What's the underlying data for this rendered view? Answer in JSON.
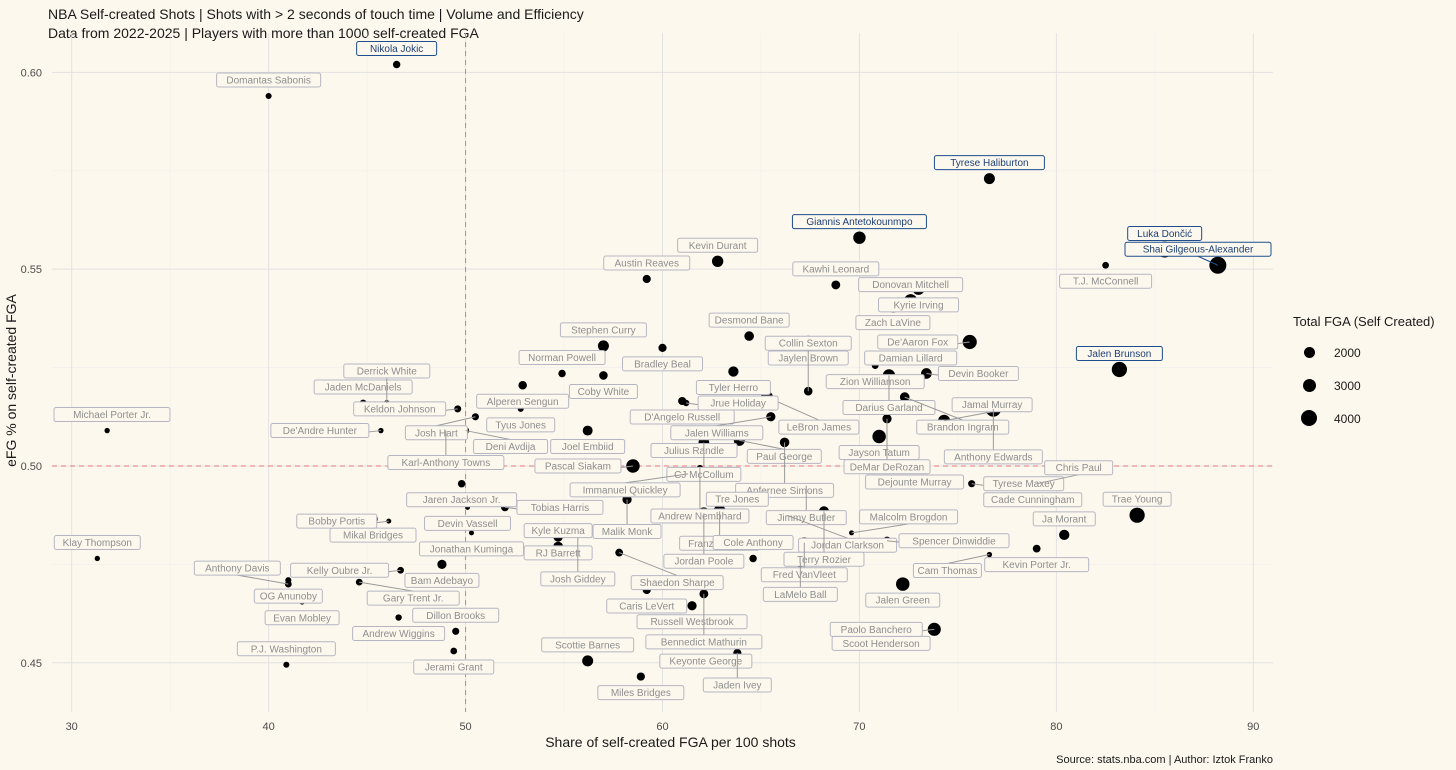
{
  "title": {
    "line1": "NBA Self-created Shots | Shots with > 2 seconds of touch time | Volume and Efficiency",
    "line2": "Data from 2022-2025 | Players with more than 1000 self-created FGA"
  },
  "source": "Source: stats.nba.com | Author: Iztok Franko",
  "legend": {
    "title": "Total FGA (Self Created)",
    "items": [
      {
        "label": "2000",
        "value": 2000
      },
      {
        "label": "3000",
        "value": 3000
      },
      {
        "label": "4000",
        "value": 4000
      }
    ]
  },
  "colors": {
    "background": "#fdf8ee",
    "grid": "#e2e2e2",
    "refline": "#e07a7a",
    "point": "#000000",
    "highlight": "#1f4e8c",
    "muted_label": "#8e8e8e"
  },
  "chart_data": {
    "type": "scatter",
    "xlabel": "Share of self-created FGA per 100 shots",
    "ylabel": "eFG % on self-created FGA",
    "xlim": [
      29,
      91
    ],
    "ylim": [
      0.4375,
      0.61
    ],
    "xticks": [
      30,
      40,
      50,
      60,
      70,
      80,
      90
    ],
    "yticks": [
      0.45,
      0.5,
      0.55,
      0.6
    ],
    "ytick_labels": [
      "0.45",
      "0.50",
      "0.55",
      "0.60"
    ],
    "reference_lines": {
      "x": 50,
      "y": 0.5
    },
    "grid": true,
    "legend_position": "right",
    "points": [
      {
        "name": "Nikola Jokic",
        "x": 46.5,
        "y": 0.602,
        "fga": 1700,
        "hl": true
      },
      {
        "name": "Domantas Sabonis",
        "x": 40.0,
        "y": 0.594,
        "fga": 1300,
        "hl": false
      },
      {
        "name": "Tyrese Haliburton",
        "x": 76.6,
        "y": 0.573,
        "fga": 2700,
        "hl": true
      },
      {
        "name": "Giannis Antetokounmpo",
        "x": 70.0,
        "y": 0.558,
        "fga": 3100,
        "hl": true
      },
      {
        "name": "Luka Dončić",
        "x": 85.5,
        "y": 0.555,
        "fga": 4100,
        "hl": true
      },
      {
        "name": "Shai Gilgeous-Alexander",
        "x": 88.2,
        "y": 0.551,
        "fga": 4400,
        "hl": true
      },
      {
        "name": "T.J. McConnell",
        "x": 82.5,
        "y": 0.551,
        "fga": 1500,
        "hl": false
      },
      {
        "name": "Kevin Durant",
        "x": 62.8,
        "y": 0.552,
        "fga": 2800,
        "hl": false
      },
      {
        "name": "Austin Reaves",
        "x": 59.2,
        "y": 0.5475,
        "fga": 1900,
        "hl": false
      },
      {
        "name": "Kawhi Leonard",
        "x": 68.8,
        "y": 0.546,
        "fga": 2100,
        "hl": false
      },
      {
        "name": "Kyrie Irving",
        "x": 73.0,
        "y": 0.545,
        "fga": 3000,
        "hl": false
      },
      {
        "name": "Donovan Mitchell",
        "x": 72.6,
        "y": 0.542,
        "fga": 3300,
        "hl": false
      },
      {
        "name": "Zach LaVine",
        "x": 71.7,
        "y": 0.5405,
        "fga": 3000,
        "hl": false
      },
      {
        "name": "Desmond Bane",
        "x": 64.4,
        "y": 0.533,
        "fga": 2300,
        "hl": false
      },
      {
        "name": "Damian Lillard",
        "x": 72.6,
        "y": 0.5315,
        "fga": 3000,
        "hl": false
      },
      {
        "name": "De'Aaron Fox",
        "x": 75.6,
        "y": 0.5315,
        "fga": 3600,
        "hl": false
      },
      {
        "name": "Jaylen Brown",
        "x": 67.4,
        "y": 0.5315,
        "fga": 3100,
        "hl": false
      },
      {
        "name": "Stephen Curry",
        "x": 57.0,
        "y": 0.5305,
        "fga": 2700,
        "hl": false
      },
      {
        "name": "Bradley Beal",
        "x": 60.0,
        "y": 0.53,
        "fga": 1900,
        "hl": false
      },
      {
        "name": "Norman Powell",
        "x": 54.9,
        "y": 0.5235,
        "fga": 1700,
        "hl": false
      },
      {
        "name": "Coby White",
        "x": 57.0,
        "y": 0.523,
        "fga": 2000,
        "hl": false
      },
      {
        "name": "Tyler Herro",
        "x": 63.6,
        "y": 0.524,
        "fga": 2500,
        "hl": false
      },
      {
        "name": "Zion Williamson",
        "x": 70.8,
        "y": 0.5255,
        "fga": 1500,
        "hl": false
      },
      {
        "name": "Darius Garland",
        "x": 71.5,
        "y": 0.523,
        "fga": 3100,
        "hl": false
      },
      {
        "name": "Devin Booker",
        "x": 73.4,
        "y": 0.5235,
        "fga": 2600,
        "hl": false
      },
      {
        "name": "Jalen Brunson",
        "x": 83.2,
        "y": 0.5245,
        "fga": 3900,
        "hl": true
      },
      {
        "name": "Alperen Sengun",
        "x": 52.9,
        "y": 0.5205,
        "fga": 2000,
        "hl": false
      },
      {
        "name": "D'Angelo Russell",
        "x": 61.0,
        "y": 0.5165,
        "fga": 1900,
        "hl": false
      },
      {
        "name": "LeBron James",
        "x": 65.3,
        "y": 0.5175,
        "fga": 3000,
        "hl": false
      },
      {
        "name": "Collin Sexton",
        "x": 67.4,
        "y": 0.519,
        "fga": 2000,
        "hl": false
      },
      {
        "name": "Tyus Jones",
        "x": 52.8,
        "y": 0.5145,
        "fga": 1300,
        "hl": false
      },
      {
        "name": "Jrue Holiday",
        "x": 61.2,
        "y": 0.516,
        "fga": 1400,
        "hl": false
      },
      {
        "name": "Jalen Williams",
        "x": 65.5,
        "y": 0.5125,
        "fga": 2200,
        "hl": false
      },
      {
        "name": "Brandon Ingram",
        "x": 72.3,
        "y": 0.5175,
        "fga": 2300,
        "hl": false
      },
      {
        "name": "Jamal Murray",
        "x": 74.3,
        "y": 0.5115,
        "fga": 3000,
        "hl": false
      },
      {
        "name": "Anthony Edwards",
        "x": 76.8,
        "y": 0.5145,
        "fga": 4000,
        "hl": false
      },
      {
        "name": "Jayson Tatum",
        "x": 71.0,
        "y": 0.5075,
        "fga": 3400,
        "hl": false
      },
      {
        "name": "DeMar DeRozan",
        "x": 71.4,
        "y": 0.512,
        "fga": 2200,
        "hl": false
      },
      {
        "name": "Jaden McDaniels",
        "x": 44.8,
        "y": 0.516,
        "fga": 1500,
        "hl": false
      },
      {
        "name": "Keldon Johnson",
        "x": 49.6,
        "y": 0.5145,
        "fga": 1600,
        "hl": false
      },
      {
        "name": "Derrick White",
        "x": 46.0,
        "y": 0.516,
        "fga": 1200,
        "hl": false
      },
      {
        "name": "Josh Hart",
        "x": 50.5,
        "y": 0.5125,
        "fga": 1600,
        "hl": false
      },
      {
        "name": "Deni Avdija",
        "x": 50.0,
        "y": 0.509,
        "fga": 1600,
        "hl": false
      },
      {
        "name": "De'Andre Hunter",
        "x": 45.7,
        "y": 0.509,
        "fga": 1100,
        "hl": false
      },
      {
        "name": "Karl-Anthony Towns",
        "x": 49.0,
        "y": 0.509,
        "fga": 1000,
        "hl": false
      },
      {
        "name": "Joel Embiid",
        "x": 56.2,
        "y": 0.509,
        "fga": 2400,
        "hl": false
      },
      {
        "name": "Julius Randle",
        "x": 61.6,
        "y": 0.508,
        "fga": 1800,
        "hl": false
      },
      {
        "name": "Paul George",
        "x": 63.9,
        "y": 0.5065,
        "fga": 2700,
        "hl": false
      },
      {
        "name": "CJ McCollum",
        "x": 62.1,
        "y": 0.506,
        "fga": 2600,
        "hl": false
      },
      {
        "name": "Anfernee Simons",
        "x": 66.2,
        "y": 0.506,
        "fga": 2300,
        "hl": false
      },
      {
        "name": "Michael Porter Jr.",
        "x": 31.8,
        "y": 0.509,
        "fga": 1100,
        "hl": false
      },
      {
        "name": "Jaren Jackson Jr.",
        "x": 49.8,
        "y": 0.4955,
        "fga": 1700,
        "hl": false
      },
      {
        "name": "Pascal Siakam",
        "x": 58.5,
        "y": 0.5,
        "fga": 3400,
        "hl": false
      },
      {
        "name": "Immanuel Quickley",
        "x": 61.3,
        "y": 0.498,
        "fga": 1900,
        "hl": false
      },
      {
        "name": "Andrew Nembhard",
        "x": 61.9,
        "y": 0.4995,
        "fga": 1300,
        "hl": false
      },
      {
        "name": "Dejounte Murray",
        "x": 72.8,
        "y": 0.5,
        "fga": 3300,
        "hl": false
      },
      {
        "name": "Jimmy Butler",
        "x": 67.3,
        "y": 0.495,
        "fga": 1100,
        "hl": false
      },
      {
        "name": "Cade Cunningham",
        "x": 78.8,
        "y": 0.4955,
        "fga": 3300,
        "hl": false
      },
      {
        "name": "Tyrese Maxey",
        "x": 75.7,
        "y": 0.4955,
        "fga": 1600,
        "hl": false
      },
      {
        "name": "Chris Paul",
        "x": 79.0,
        "y": 0.4955,
        "fga": 1600,
        "hl": false
      },
      {
        "name": "Devin Vassell",
        "x": 50.1,
        "y": 0.4895,
        "fga": 1000,
        "hl": false
      },
      {
        "name": "Tobias Harris",
        "x": 52.0,
        "y": 0.4895,
        "fga": 1800,
        "hl": false
      },
      {
        "name": "Malik Monk",
        "x": 58.2,
        "y": 0.4915,
        "fga": 2200,
        "hl": false
      },
      {
        "name": "Franz Wagner",
        "x": 62.9,
        "y": 0.4885,
        "fga": 3100,
        "hl": false
      },
      {
        "name": "Jordan Poole",
        "x": 62.1,
        "y": 0.488,
        "fga": 2900,
        "hl": false
      },
      {
        "name": "Tre Jones",
        "x": 63.8,
        "y": 0.4875,
        "fga": 1900,
        "hl": false
      },
      {
        "name": "Jordan Clarkson",
        "x": 66.3,
        "y": 0.4875,
        "fga": 1300,
        "hl": false
      },
      {
        "name": "Terry Rozier",
        "x": 68.2,
        "y": 0.4885,
        "fga": 2400,
        "hl": false
      },
      {
        "name": "Jonathan Kuminga",
        "x": 50.3,
        "y": 0.483,
        "fga": 1000,
        "hl": false
      },
      {
        "name": "Mikal Bridges",
        "x": 45.3,
        "y": 0.4865,
        "fga": 2300,
        "hl": false
      },
      {
        "name": "RJ Barrett",
        "x": 54.7,
        "y": 0.482,
        "fga": 2300,
        "hl": false
      },
      {
        "name": "Josh Giddey",
        "x": 55.7,
        "y": 0.4835,
        "fga": 2000,
        "hl": false
      },
      {
        "name": "Malcolm Brogdon",
        "x": 69.6,
        "y": 0.483,
        "fga": 1000,
        "hl": false
      },
      {
        "name": "Ja Morant",
        "x": 80.4,
        "y": 0.4825,
        "fga": 2500,
        "hl": false
      },
      {
        "name": "Trae Young",
        "x": 84.1,
        "y": 0.4875,
        "fga": 3900,
        "hl": false
      },
      {
        "name": "Bobby Portis",
        "x": 46.1,
        "y": 0.486,
        "fga": 1000,
        "hl": false
      },
      {
        "name": "Kyle Kuzma",
        "x": 54.7,
        "y": 0.4795,
        "fga": 2400,
        "hl": false
      },
      {
        "name": "Shaedon Sharpe",
        "x": 57.8,
        "y": 0.478,
        "fga": 1800,
        "hl": false
      },
      {
        "name": "Fred VanVleet",
        "x": 67.2,
        "y": 0.4805,
        "fga": 2600,
        "hl": false
      },
      {
        "name": "Spencer Dinwiddie",
        "x": 71.4,
        "y": 0.481,
        "fga": 1900,
        "hl": false
      },
      {
        "name": "Kevin Porter Jr.",
        "x": 79.0,
        "y": 0.479,
        "fga": 1800,
        "hl": false
      },
      {
        "name": "Cam Thomas",
        "x": 76.6,
        "y": 0.4775,
        "fga": 1100,
        "hl": false
      },
      {
        "name": "Bam Adebayo",
        "x": 48.8,
        "y": 0.475,
        "fga": 2200,
        "hl": false
      },
      {
        "name": "Kelly Oubre Jr.",
        "x": 46.7,
        "y": 0.4735,
        "fga": 1500,
        "hl": false
      },
      {
        "name": "Klay Thompson",
        "x": 31.3,
        "y": 0.4765,
        "fga": 1100,
        "hl": false
      },
      {
        "name": "OG Anunoby",
        "x": 41.0,
        "y": 0.471,
        "fga": 1300,
        "hl": false
      },
      {
        "name": "Gary Trent Jr.",
        "x": 44.6,
        "y": 0.4705,
        "fga": 1500,
        "hl": false
      },
      {
        "name": "Anthony Davis",
        "x": 41.0,
        "y": 0.47,
        "fga": 1500,
        "hl": false
      },
      {
        "name": "Evan Mobley",
        "x": 41.7,
        "y": 0.4655,
        "fga": 1200,
        "hl": false
      },
      {
        "name": "LaMelo Ball",
        "x": 67.0,
        "y": 0.4755,
        "fga": 2300,
        "hl": false
      },
      {
        "name": "Cole Anthony",
        "x": 64.6,
        "y": 0.4765,
        "fga": 1700,
        "hl": false
      },
      {
        "name": "Caris LeVert",
        "x": 59.2,
        "y": 0.4685,
        "fga": 1900,
        "hl": false
      },
      {
        "name": "Jalen Green",
        "x": 72.2,
        "y": 0.47,
        "fga": 3400,
        "hl": false
      },
      {
        "name": "Andrew Wiggins",
        "x": 46.6,
        "y": 0.4615,
        "fga": 1400,
        "hl": false
      },
      {
        "name": "Russell Westbrook",
        "x": 61.5,
        "y": 0.4645,
        "fga": 2200,
        "hl": false
      },
      {
        "name": "Bennedict Mathurin",
        "x": 62.1,
        "y": 0.4675,
        "fga": 2100,
        "hl": false
      },
      {
        "name": "Dillon Brooks",
        "x": 49.5,
        "y": 0.458,
        "fga": 1600,
        "hl": false
      },
      {
        "name": "Scoot Henderson",
        "x": 71.1,
        "y": 0.459,
        "fga": 1000,
        "hl": false
      },
      {
        "name": "Paolo Banchero",
        "x": 73.8,
        "y": 0.4585,
        "fga": 3300,
        "hl": false
      },
      {
        "name": "Scottie Barnes",
        "x": 56.2,
        "y": 0.4505,
        "fga": 2700,
        "hl": false
      },
      {
        "name": "Jerami Grant",
        "x": 49.4,
        "y": 0.453,
        "fga": 1500,
        "hl": false
      },
      {
        "name": "Keyonte George",
        "x": 62.2,
        "y": 0.4545,
        "fga": 1600,
        "hl": false
      },
      {
        "name": "Jaden Ivey",
        "x": 63.8,
        "y": 0.4525,
        "fga": 1900,
        "hl": false
      },
      {
        "name": "Miles Bridges",
        "x": 58.9,
        "y": 0.4465,
        "fga": 1900,
        "hl": false
      },
      {
        "name": "P.J. Washington",
        "x": 40.9,
        "y": 0.4495,
        "fga": 1300,
        "hl": false
      }
    ]
  }
}
